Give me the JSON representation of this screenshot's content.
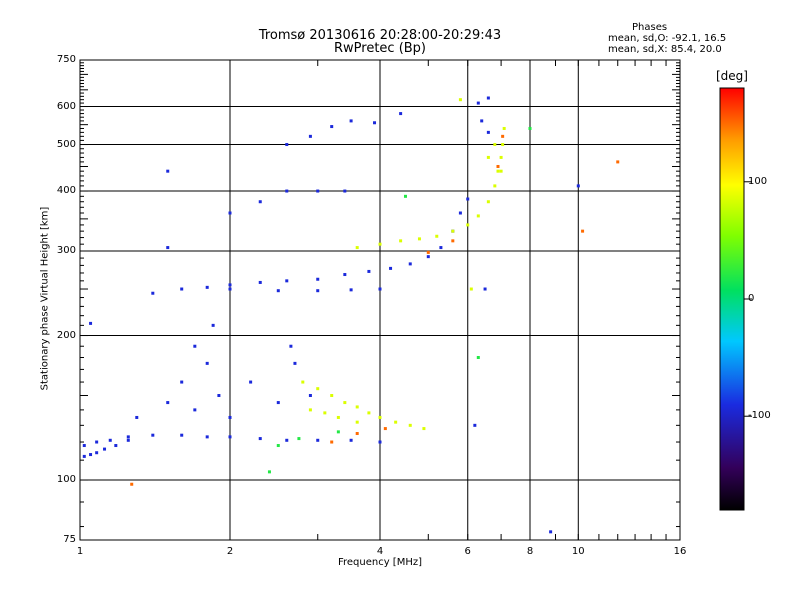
{
  "header": {
    "title_line1": "Tromsø 20130616 20:28:00-20:29:43",
    "title_line2": "RwPretec (Bp)"
  },
  "phase_stats": {
    "heading": "Phases",
    "line_o": "mean, sd,O: -92.1, 16.5",
    "line_x": "mean, sd,X:  85.4, 20.0"
  },
  "colorbar": {
    "label": "[deg]",
    "range": [
      -180,
      180
    ],
    "ticks": [
      {
        "value": 100,
        "label": "100"
      },
      {
        "value": 0,
        "label": "0"
      },
      {
        "value": -100,
        "label": "-100"
      }
    ]
  },
  "colors": {
    "o_mode": "#2233cc",
    "x_mode": "#ccee22",
    "grid": "#000000"
  },
  "chart_data": {
    "type": "scatter",
    "title": "Tromsø 20130616 20:28:00-20:29:43",
    "subtitle": "RwPretec (Bp)",
    "xlabel": "Frequency [MHz]",
    "ylabel": "Stationary phase Virtual Height [km]",
    "x_scale": "log",
    "y_scale": "log",
    "xlim": [
      1,
      16
    ],
    "ylim": [
      75,
      750
    ],
    "x_ticks": [
      {
        "value": 1,
        "label": "1"
      },
      {
        "value": 2,
        "label": "2"
      },
      {
        "value": 4,
        "label": "4"
      },
      {
        "value": 6,
        "label": "6"
      },
      {
        "value": 8,
        "label": "8"
      },
      {
        "value": 10,
        "label": "10"
      },
      {
        "value": 16,
        "label": "16"
      }
    ],
    "y_ticks": [
      {
        "value": 75,
        "label": "75"
      },
      {
        "value": 100,
        "label": "100"
      },
      {
        "value": 200,
        "label": "200"
      },
      {
        "value": 300,
        "label": "300"
      },
      {
        "value": 400,
        "label": "400"
      },
      {
        "value": 500,
        "label": "500"
      },
      {
        "value": 600,
        "label": "600"
      },
      {
        "value": 750,
        "label": "750"
      }
    ],
    "x_gridlines": [
      1,
      2,
      4,
      6,
      8,
      10,
      16
    ],
    "y_gridlines": [
      100,
      200,
      300,
      400,
      500,
      600
    ],
    "color_variable": "phase [deg]",
    "series": [
      {
        "mode": "O",
        "phase": -92,
        "points": [
          [
            1.02,
            112
          ],
          [
            1.05,
            113
          ],
          [
            1.08,
            114
          ],
          [
            1.12,
            116
          ],
          [
            1.18,
            118
          ],
          [
            1.25,
            121
          ],
          [
            1.02,
            118
          ],
          [
            1.08,
            120
          ],
          [
            1.15,
            121
          ],
          [
            1.25,
            123
          ],
          [
            1.4,
            124
          ],
          [
            1.6,
            124
          ],
          [
            1.8,
            123
          ],
          [
            2.0,
            123
          ],
          [
            2.3,
            122
          ],
          [
            2.6,
            121
          ],
          [
            3.0,
            121
          ],
          [
            3.5,
            121
          ],
          [
            4.0,
            120
          ],
          [
            1.3,
            135
          ],
          [
            1.5,
            145
          ],
          [
            1.6,
            160
          ],
          [
            1.7,
            140
          ],
          [
            1.8,
            175
          ],
          [
            1.9,
            150
          ],
          [
            2.0,
            135
          ],
          [
            2.2,
            160
          ],
          [
            2.5,
            145
          ],
          [
            2.7,
            175
          ],
          [
            2.9,
            150
          ],
          [
            1.7,
            190
          ],
          [
            1.85,
            210
          ],
          [
            2.65,
            190
          ],
          [
            1.4,
            245
          ],
          [
            1.6,
            250
          ],
          [
            1.8,
            252
          ],
          [
            2.0,
            255
          ],
          [
            2.3,
            258
          ],
          [
            2.6,
            260
          ],
          [
            3.0,
            262
          ],
          [
            3.4,
            268
          ],
          [
            3.8,
            272
          ],
          [
            4.2,
            276
          ],
          [
            4.6,
            282
          ],
          [
            5.0,
            292
          ],
          [
            5.3,
            305
          ],
          [
            5.6,
            330
          ],
          [
            5.8,
            360
          ],
          [
            6.0,
            385
          ],
          [
            2.0,
            250
          ],
          [
            2.5,
            248
          ],
          [
            3.0,
            248
          ],
          [
            3.5,
            249
          ],
          [
            4.0,
            250
          ],
          [
            2.0,
            360
          ],
          [
            2.3,
            380
          ],
          [
            2.6,
            400
          ],
          [
            3.0,
            400
          ],
          [
            3.4,
            400
          ],
          [
            2.6,
            500
          ],
          [
            2.9,
            520
          ],
          [
            3.2,
            545
          ],
          [
            3.5,
            560
          ],
          [
            3.9,
            555
          ],
          [
            4.4,
            580
          ],
          [
            1.05,
            212
          ],
          [
            1.5,
            440
          ],
          [
            1.5,
            305
          ],
          [
            6.3,
            610
          ],
          [
            6.6,
            625
          ],
          [
            6.4,
            560
          ],
          [
            6.6,
            530
          ],
          [
            6.2,
            130
          ],
          [
            6.5,
            250
          ],
          [
            10.0,
            410
          ],
          [
            8.8,
            78
          ]
        ]
      },
      {
        "mode": "X",
        "phase": 85,
        "points": [
          [
            2.8,
            160
          ],
          [
            3.0,
            155
          ],
          [
            3.2,
            150
          ],
          [
            3.4,
            145
          ],
          [
            3.6,
            142
          ],
          [
            3.8,
            138
          ],
          [
            4.0,
            135
          ],
          [
            4.3,
            132
          ],
          [
            4.6,
            130
          ],
          [
            4.9,
            128
          ],
          [
            2.9,
            140
          ],
          [
            3.1,
            138
          ],
          [
            3.3,
            135
          ],
          [
            3.6,
            132
          ],
          [
            3.6,
            305
          ],
          [
            4.0,
            310
          ],
          [
            4.4,
            315
          ],
          [
            4.8,
            318
          ],
          [
            5.2,
            322
          ],
          [
            5.6,
            330
          ],
          [
            6.0,
            340
          ],
          [
            6.3,
            355
          ],
          [
            6.6,
            380
          ],
          [
            6.8,
            410
          ],
          [
            6.9,
            440
          ],
          [
            7.0,
            470
          ],
          [
            7.05,
            500
          ],
          [
            7.1,
            540
          ],
          [
            6.6,
            470
          ],
          [
            6.8,
            500
          ],
          [
            5.8,
            620
          ],
          [
            6.1,
            250
          ],
          [
            7.0,
            440
          ]
        ]
      },
      {
        "mode": "scattered",
        "phase": 150,
        "points": [
          [
            3.2,
            120
          ],
          [
            3.6,
            125
          ],
          [
            4.1,
            128
          ],
          [
            5.0,
            298
          ],
          [
            5.6,
            315
          ],
          [
            6.9,
            450
          ],
          [
            7.05,
            520
          ],
          [
            10.2,
            330
          ],
          [
            12.0,
            460
          ],
          [
            1.27,
            98
          ]
        ]
      },
      {
        "mode": "scattered",
        "phase": 20,
        "points": [
          [
            2.5,
            118
          ],
          [
            2.75,
            122
          ],
          [
            3.3,
            126
          ],
          [
            4.5,
            390
          ],
          [
            6.3,
            180
          ],
          [
            2.4,
            104
          ],
          [
            8.0,
            540
          ]
        ]
      }
    ]
  }
}
